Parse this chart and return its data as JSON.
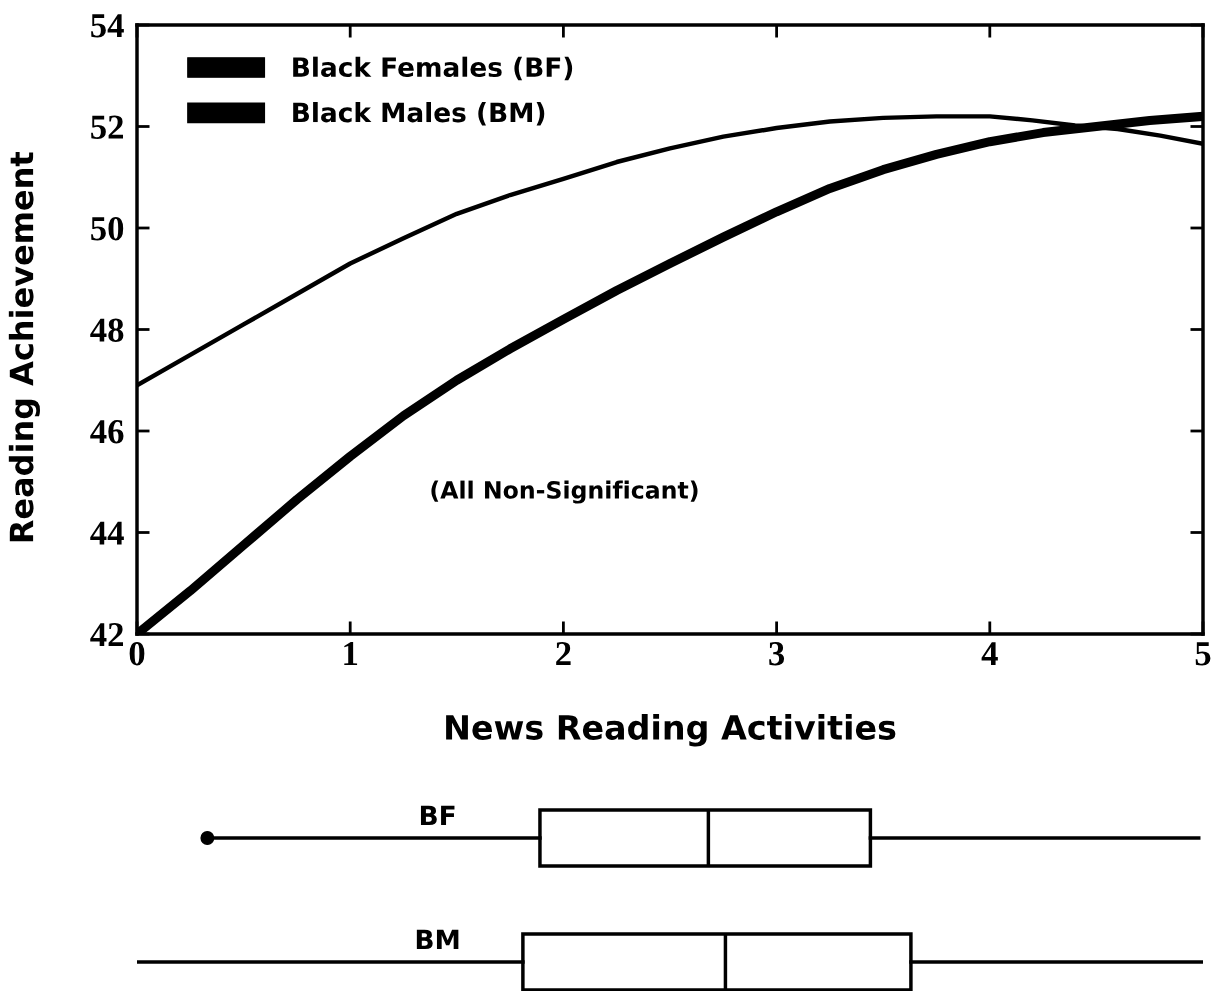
{
  "chart_data": [
    {
      "type": "line",
      "xlabel": "News Reading Activities",
      "ylabel": "Reading Achievement",
      "annotations": [
        "(All Non-Significant)"
      ],
      "xlim": [
        0,
        5
      ],
      "ylim": [
        42,
        54
      ],
      "xticks": [
        0,
        1,
        2,
        3,
        4,
        5
      ],
      "yticks": [
        42,
        44,
        46,
        48,
        50,
        52,
        54
      ],
      "grid": false,
      "legend": "top left",
      "marker": "none",
      "line_style": "solid",
      "series": [
        {
          "name": "Black Females (BF)",
          "color": "#000000",
          "x": [
            0,
            0.25,
            0.5,
            0.75,
            1.0,
            1.25,
            1.5,
            1.75,
            2.0,
            2.25,
            2.5,
            2.75,
            3.0,
            3.25,
            3.5,
            3.75,
            4.0,
            4.2,
            4.4,
            4.6,
            4.8,
            5.0
          ],
          "values": [
            46.9,
            47.5,
            48.1,
            48.7,
            49.3,
            49.8,
            50.28,
            50.65,
            50.97,
            51.3,
            51.57,
            51.8,
            51.97,
            52.1,
            52.17,
            52.2,
            52.2,
            52.12,
            52.02,
            51.95,
            51.82,
            51.66
          ]
        },
        {
          "name": "Black Males (BM)",
          "color": "#000000",
          "x": [
            0,
            0.25,
            0.5,
            0.75,
            1.0,
            1.25,
            1.5,
            1.75,
            2.0,
            2.25,
            2.5,
            2.75,
            3.0,
            3.25,
            3.5,
            3.75,
            4.0,
            4.25,
            4.5,
            4.75,
            5.0
          ],
          "values": [
            42.0,
            42.85,
            43.75,
            44.65,
            45.5,
            46.3,
            47.0,
            47.62,
            48.2,
            48.77,
            49.3,
            49.82,
            50.32,
            50.78,
            51.15,
            51.45,
            51.7,
            51.88,
            52.0,
            52.12,
            52.2
          ]
        }
      ]
    },
    {
      "type": "box",
      "orientation": "horizontal",
      "categories": [
        "BF",
        "BM"
      ],
      "xlim": [
        0,
        5
      ],
      "tick_labels": "y",
      "boxes": [
        {
          "low": 0.33,
          "q1": 1.89,
          "median": 2.68,
          "q3": 3.44,
          "high": 4.98,
          "outliers": [
            0.33
          ]
        },
        {
          "low": 0,
          "q1": 1.81,
          "median": 2.76,
          "q3": 3.63,
          "high": 5.0
        }
      ]
    }
  ]
}
